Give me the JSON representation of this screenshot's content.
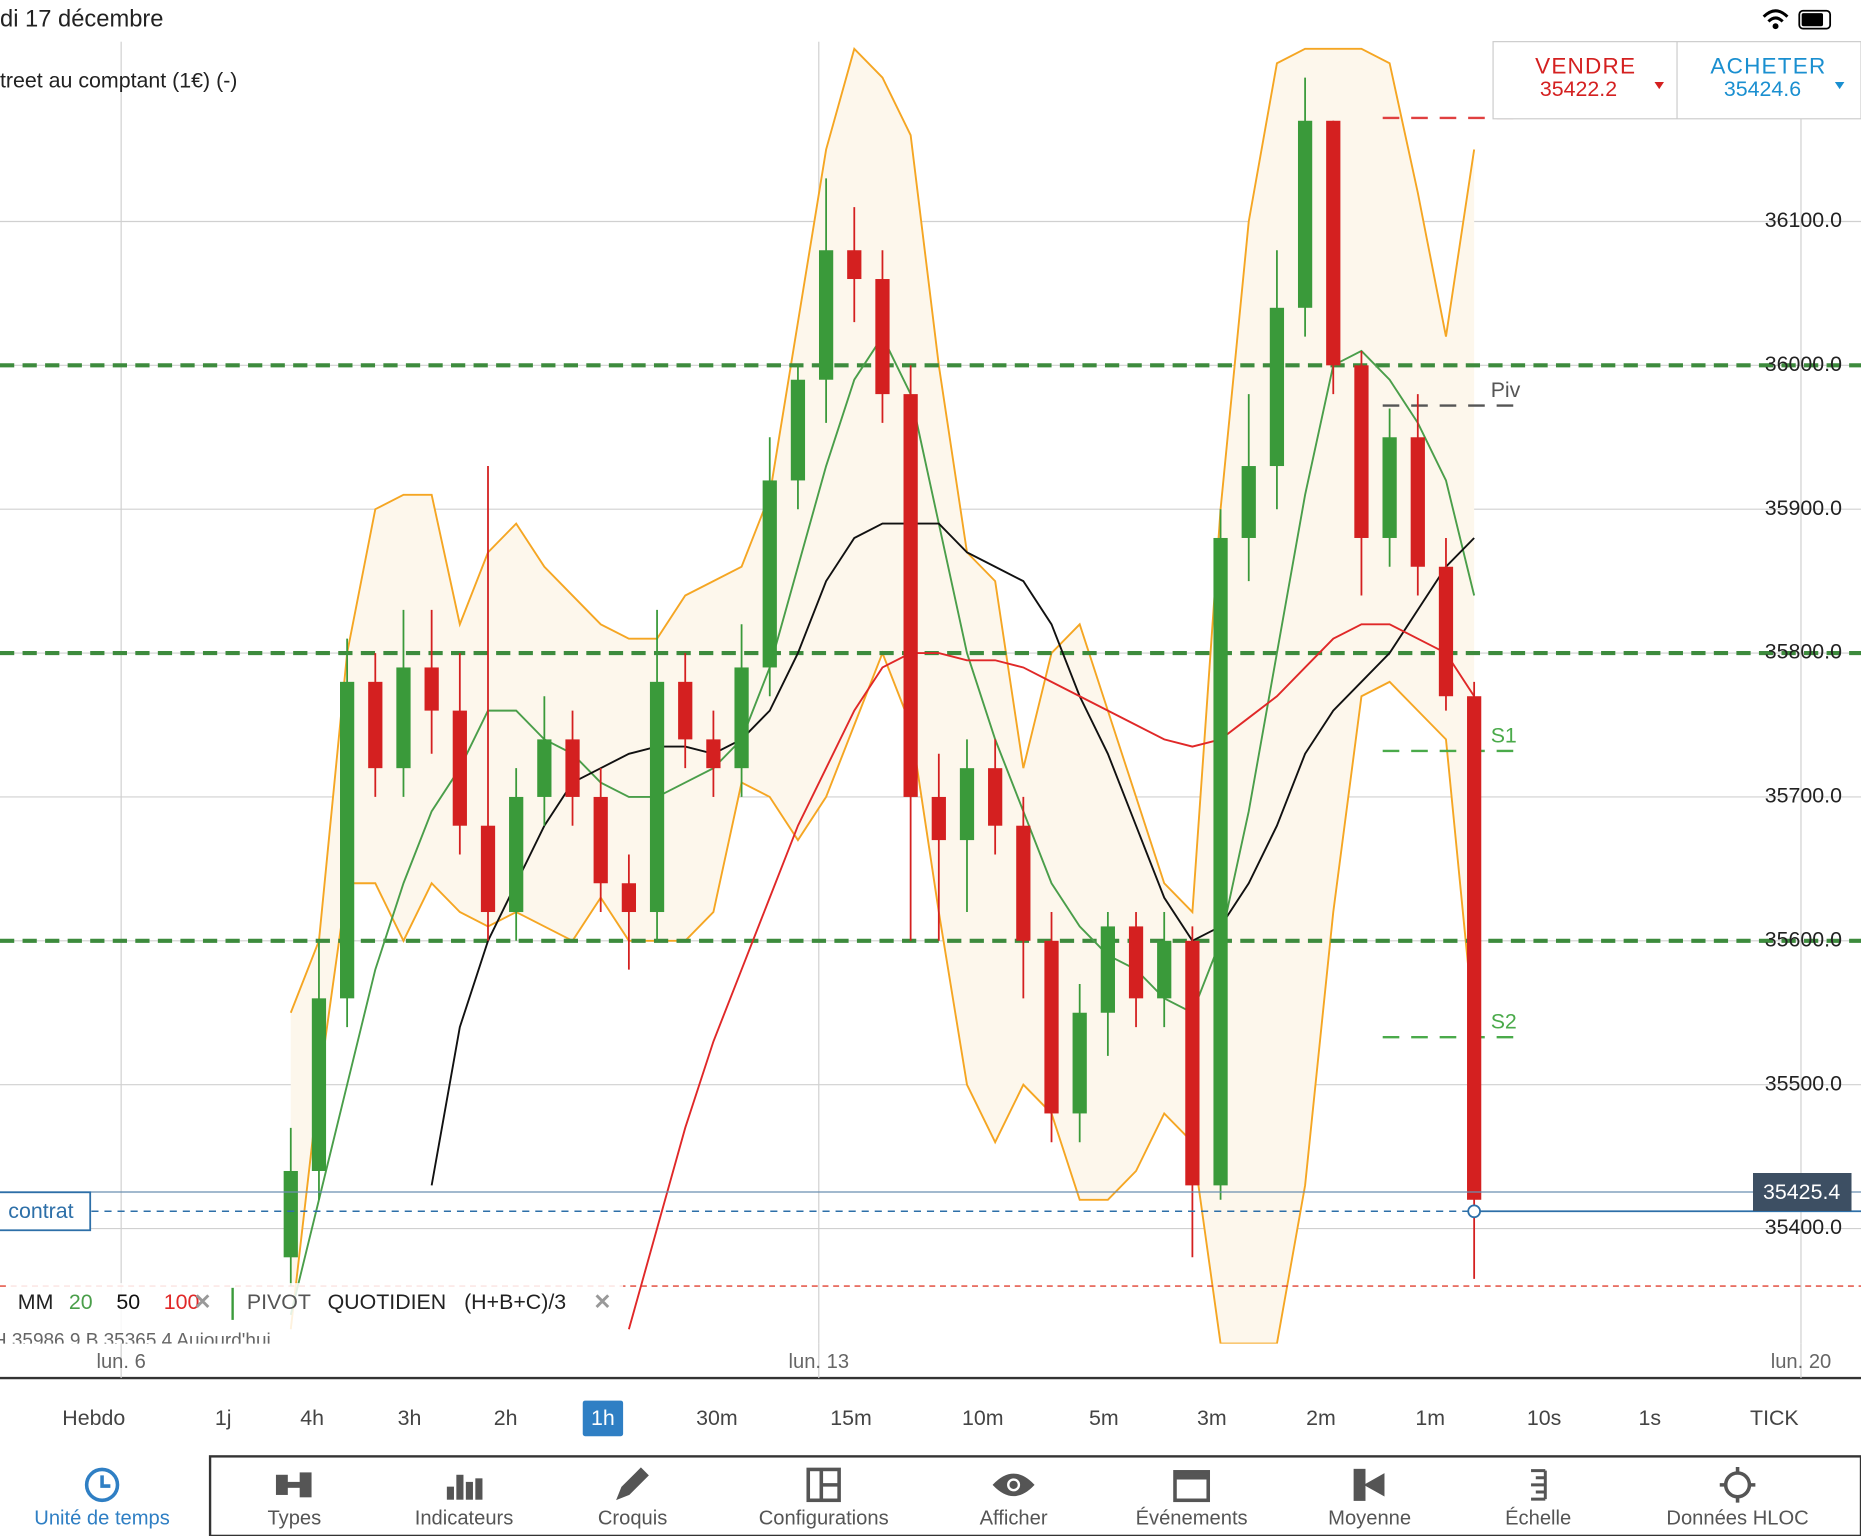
{
  "status_bar": {
    "date": "di 17 décembre"
  },
  "instrument": "treet au comptant (1€) (-)",
  "sell": {
    "label": "VENDRE",
    "price": "35422.2"
  },
  "buy": {
    "label": "ACHETER",
    "price": "35424.6"
  },
  "chart_data": {
    "type": "candlestick",
    "open": [
      35380,
      35440,
      35560,
      35780,
      35720,
      35790,
      35760,
      35680,
      35620,
      35700,
      35740,
      35700,
      35640,
      35620,
      35780,
      35740,
      35720,
      35790,
      35920,
      35990,
      36080,
      36060,
      35980,
      35700,
      35670,
      35720,
      35680,
      35600,
      35480,
      35550,
      35610,
      35560,
      35600,
      35430,
      35880,
      35930,
      36040,
      36170,
      36000,
      35880,
      35950,
      35860,
      35770
    ],
    "high": [
      35470,
      35600,
      35810,
      35800,
      35830,
      35830,
      35800,
      35930,
      35720,
      35770,
      35760,
      35720,
      35660,
      35830,
      35800,
      35760,
      35820,
      35950,
      36000,
      36130,
      36110,
      36080,
      36000,
      35730,
      35740,
      35740,
      35700,
      35620,
      35570,
      35620,
      35620,
      35620,
      35610,
      35900,
      35980,
      36080,
      36200,
      36170,
      36010,
      35970,
      35980,
      35880,
      35780
    ],
    "low": [
      35360,
      35420,
      35540,
      35700,
      35700,
      35730,
      35660,
      35600,
      35600,
      35680,
      35680,
      35620,
      35580,
      35600,
      35720,
      35700,
      35700,
      35770,
      35900,
      35960,
      36030,
      35960,
      35600,
      35600,
      35620,
      35660,
      35560,
      35460,
      35460,
      35520,
      35540,
      35540,
      35380,
      35420,
      35850,
      35900,
      36020,
      35980,
      35840,
      35860,
      35840,
      35760,
      35365
    ],
    "close": [
      35440,
      35560,
      35780,
      35720,
      35790,
      35760,
      35680,
      35620,
      35700,
      35740,
      35700,
      35640,
      35620,
      35780,
      35740,
      35720,
      35790,
      35920,
      35990,
      36080,
      36060,
      35980,
      35700,
      35670,
      35720,
      35680,
      35600,
      35480,
      35550,
      35610,
      35560,
      35600,
      35430,
      35880,
      35930,
      36040,
      36170,
      36000,
      35880,
      35950,
      35860,
      35770,
      35420
    ],
    "up_color": "#3a9a3a",
    "down_color": "#d42020",
    "series": [
      {
        "name": "20",
        "color": "#4a9e4a",
        "values": [
          35340,
          35420,
          35500,
          35580,
          35640,
          35690,
          35720,
          35760,
          35760,
          35740,
          35730,
          35710,
          35700,
          35700,
          35710,
          35720,
          35740,
          35790,
          35860,
          35930,
          35990,
          36020,
          35980,
          35890,
          35800,
          35740,
          35690,
          35640,
          35610,
          35590,
          35580,
          35560,
          35550,
          35600,
          35690,
          35800,
          35910,
          36000,
          36010,
          35990,
          35960,
          35920,
          35840
        ]
      },
      {
        "name": "50",
        "color": "#111111",
        "values": [
          null,
          null,
          null,
          null,
          null,
          35430,
          35540,
          35600,
          35640,
          35680,
          35710,
          35720,
          35730,
          35735,
          35735,
          35730,
          35740,
          35760,
          35800,
          35850,
          35880,
          35890,
          35890,
          35890,
          35870,
          35860,
          35850,
          35820,
          35770,
          35730,
          35680,
          35630,
          35600,
          35610,
          35640,
          35680,
          35730,
          35760,
          35780,
          35800,
          35830,
          35860,
          35880
        ]
      },
      {
        "name": "100",
        "color": "#e02828",
        "values": [
          null,
          null,
          null,
          null,
          null,
          null,
          null,
          null,
          null,
          null,
          null,
          null,
          35330,
          35400,
          35470,
          35530,
          35580,
          35630,
          35680,
          35720,
          35760,
          35790,
          35800,
          35800,
          35795,
          35795,
          35790,
          35780,
          35770,
          35760,
          35750,
          35740,
          35735,
          35740,
          35755,
          35770,
          35790,
          35810,
          35820,
          35820,
          35810,
          35800,
          35770
        ]
      }
    ],
    "bollinger": {
      "color": "#f5a623",
      "upper": [
        35550,
        35600,
        35800,
        35900,
        35910,
        35910,
        35820,
        35870,
        35890,
        35860,
        35840,
        35820,
        35810,
        35810,
        35840,
        35850,
        35860,
        35910,
        36030,
        36150,
        36220,
        36200,
        36160,
        36000,
        35870,
        35850,
        35720,
        35800,
        35820,
        35760,
        35700,
        35640,
        35620,
        35900,
        36100,
        36210,
        36220,
        36220,
        36220,
        36210,
        36120,
        36020,
        36150
      ],
      "lower": [
        35330,
        35500,
        35640,
        35640,
        35600,
        35640,
        35620,
        35610,
        35620,
        35610,
        35600,
        35630,
        35600,
        35600,
        35600,
        35620,
        35710,
        35700,
        35670,
        35700,
        35750,
        35800,
        35750,
        35620,
        35500,
        35460,
        35500,
        35480,
        35420,
        35420,
        35440,
        35480,
        35460,
        35320,
        35320,
        35320,
        35430,
        35620,
        35770,
        35780,
        35760,
        35740,
        35540
      ]
    },
    "xlim": [
      -10.32,
      55.73
    ],
    "ylim": [
      35320,
      36225
    ],
    "xticks": [
      {
        "value": -6.02,
        "label": "lun. 6"
      },
      {
        "value": 18.74,
        "label": "lun. 13"
      },
      {
        "value": 53.6,
        "label": "lun. 20"
      }
    ],
    "yticks": [
      {
        "value": 35400,
        "label": "35400.0"
      },
      {
        "value": 35500,
        "label": "35500.0"
      },
      {
        "value": 35600,
        "label": "35600.0"
      },
      {
        "value": 35700,
        "label": "35700.0"
      },
      {
        "value": 35800,
        "label": "35800.0"
      },
      {
        "value": 35900,
        "label": "35900.0"
      },
      {
        "value": 36000,
        "label": "36000.0"
      },
      {
        "value": 36100,
        "label": "36100.0"
      }
    ],
    "grid": true,
    "levels": [
      36000,
      35800,
      35600
    ],
    "pivots": [
      {
        "value": 36172,
        "color": "#e04040"
      },
      {
        "name": "Piv",
        "value": 35972,
        "color": "#555555"
      },
      {
        "name": "S1",
        "value": 35732,
        "color": "#4aaa4a"
      },
      {
        "name": "S2",
        "value": 35533,
        "color": "#4aaa4a"
      }
    ],
    "low_line": 35360,
    "current_price": 35425.4,
    "contract": {
      "label": "contrat",
      "value": 35412
    },
    "legend_title": "MM",
    "pivot_legend": [
      "PIVOT",
      "QUOTIDIEN",
      "(H+B+C)/3"
    ],
    "pivot_info": "H 35986.9  B 35365.4  Aujourd'hui"
  },
  "timeframes": [
    "Hebdo",
    "1j",
    "4h",
    "3h",
    "2h",
    "1h",
    "30m",
    "15m",
    "10m",
    "5m",
    "3m",
    "2m",
    "1m",
    "10s",
    "1s",
    "TICK"
  ],
  "selected_timeframe": 5,
  "toolbar": [
    "Unité de temps",
    "Types",
    "Indicateurs",
    "Croquis",
    "Configurations",
    "Afficher",
    "Événements",
    "Moyenne",
    "Échelle",
    "Données HLOC"
  ],
  "selected_tool": 0
}
